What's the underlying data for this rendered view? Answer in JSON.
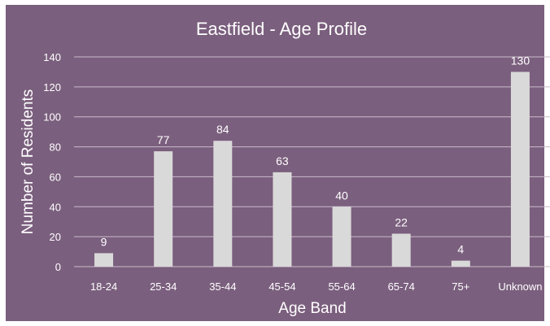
{
  "chart_data": {
    "type": "bar",
    "title": "Eastfield - Age Profile",
    "xlabel": "Age Band",
    "ylabel": "Number of Residents",
    "categories": [
      "18-24",
      "25-34",
      "35-44",
      "45-54",
      "55-64",
      "65-74",
      "75+",
      "Unknown"
    ],
    "values": [
      9,
      77,
      84,
      63,
      40,
      22,
      4,
      130
    ],
    "ylim": [
      0,
      140
    ],
    "yticks": [
      0,
      20,
      40,
      60,
      80,
      100,
      120,
      140
    ],
    "grid": true,
    "data_labels": true
  },
  "colors": {
    "background": "#7b5f7e",
    "bar": "#d9d9d9",
    "gridline": "#c9bccb",
    "text": "#ffffff"
  }
}
